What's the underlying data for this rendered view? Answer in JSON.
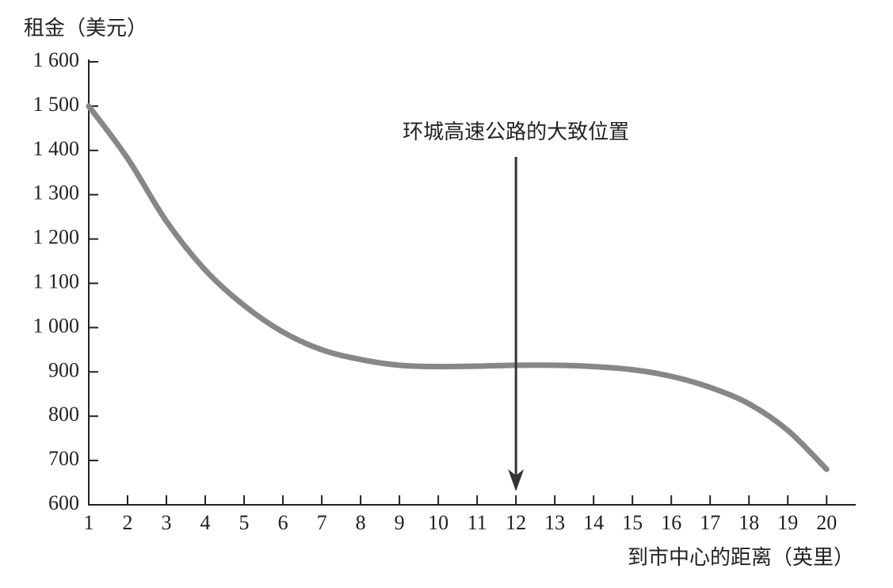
{
  "chart_data": {
    "type": "line",
    "y_label": "租金（美元）",
    "x_label": "到市中心的距离（英里）",
    "x": [
      1,
      2,
      3,
      4,
      5,
      6,
      7,
      8,
      9,
      10,
      11,
      12,
      13,
      14,
      15,
      16,
      17,
      18,
      19,
      20
    ],
    "series": [
      {
        "name": "租金",
        "color": "#878787",
        "values": [
          1500,
          1382,
          1240,
          1130,
          1050,
          990,
          950,
          928,
          915,
          912,
          913,
          915,
          915,
          912,
          905,
          890,
          865,
          828,
          768,
          680
        ]
      }
    ],
    "xlim": [
      1,
      20.75
    ],
    "xticks": [
      1,
      2,
      3,
      4,
      5,
      6,
      7,
      8,
      9,
      10,
      11,
      12,
      13,
      14,
      15,
      16,
      17,
      18,
      19,
      20
    ],
    "ylim": [
      600,
      1600
    ],
    "yticks": [
      600,
      700,
      800,
      900,
      {
        "value": 1000,
        "label": "1 000"
      },
      {
        "value": 1100,
        "label": "1 100"
      },
      {
        "value": 1200,
        "label": "1 200"
      },
      {
        "value": 1300,
        "label": "1 300"
      },
      {
        "value": 1400,
        "label": "1 400"
      },
      {
        "value": 1500,
        "label": "1 500"
      },
      {
        "value": 1600,
        "label": "1 600"
      }
    ],
    "grid": false,
    "annotation": {
      "text": "环城高速公路的大致位置",
      "x": 12
    }
  }
}
